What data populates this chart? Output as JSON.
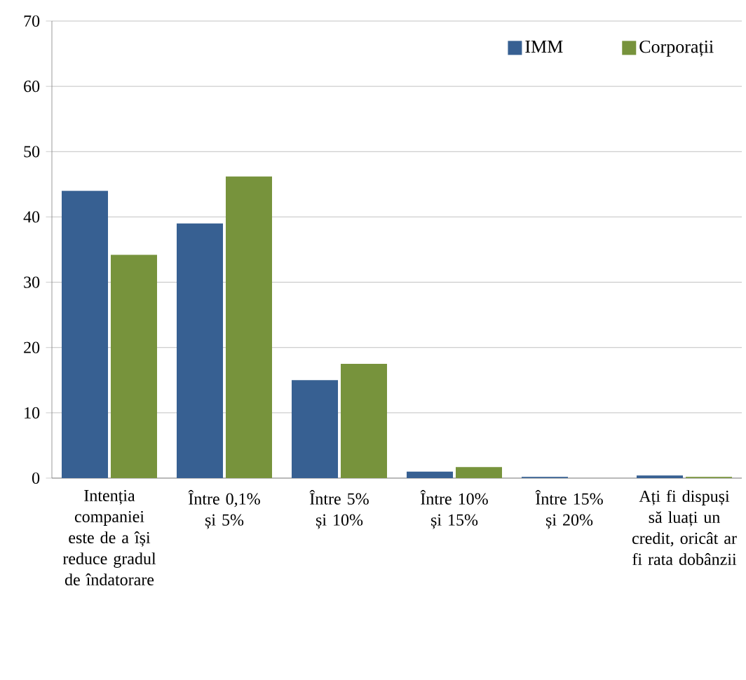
{
  "chart_data": {
    "type": "bar",
    "categories": [
      "Intenția companiei este de a își reduce gradul de îndatorare",
      "Între 0,1% și 5%",
      "Între 5% și 10%",
      "Între 10% și 15%",
      "Între 15% și 20%",
      "Ați fi dispuși să luați un credit, oricât ar fi rata dobânzii"
    ],
    "series": [
      {
        "name": "IMM",
        "color": "#376092",
        "values": [
          44,
          39,
          15,
          1,
          0.2,
          0.4
        ]
      },
      {
        "name": "Corporații",
        "color": "#77933c",
        "values": [
          34.2,
          46.2,
          17.5,
          1.7,
          0,
          0.2
        ]
      }
    ],
    "ylim": [
      0,
      70
    ],
    "yticks": [
      0,
      10,
      20,
      30,
      40,
      50,
      60,
      70
    ],
    "grid": "y",
    "legend": "top right"
  }
}
